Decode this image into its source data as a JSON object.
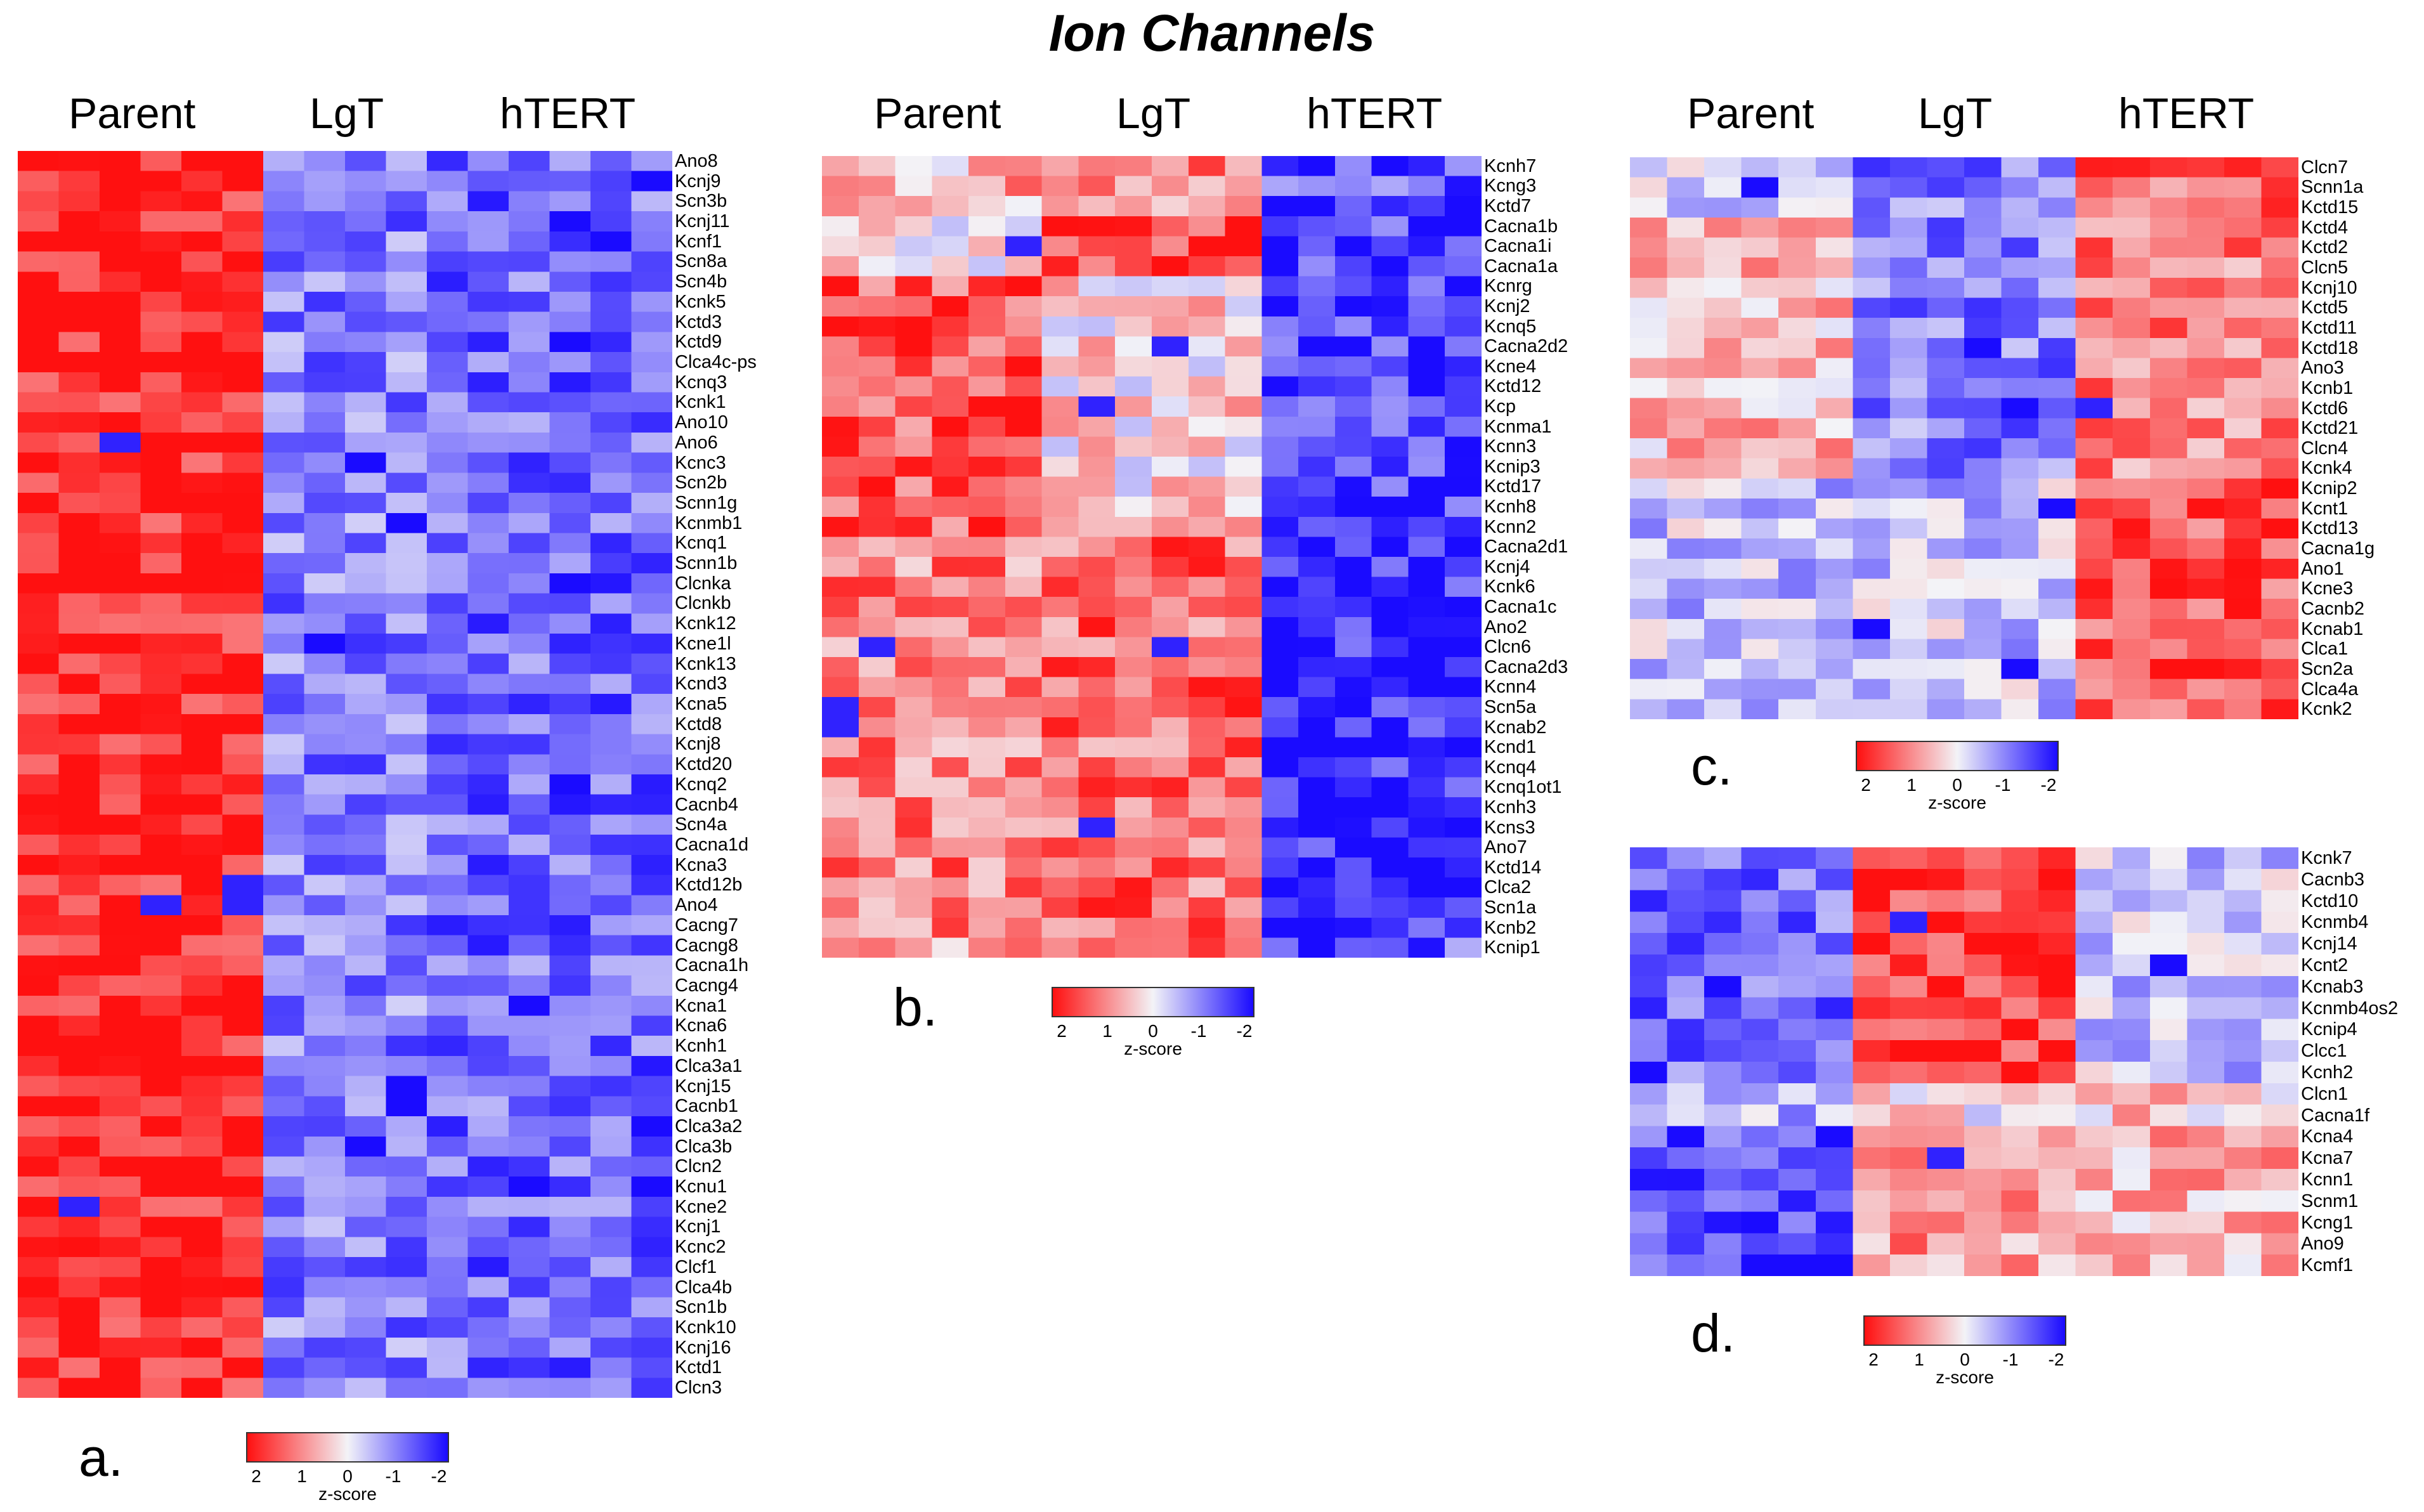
{
  "title": "Ion Channels",
  "colors": {
    "high": "#ff1010",
    "mid": "#f3f3f7",
    "low": "#1a0bff"
  },
  "legend": {
    "ticks": [
      "2",
      "1",
      "0",
      "-1",
      "-2"
    ],
    "title": "z-score"
  },
  "chart_data": [
    {
      "type": "heatmap",
      "panel": "a.",
      "groups": [
        "Parent",
        "LgT",
        "hTERT"
      ],
      "group_sizes": [
        6,
        4,
        6
      ],
      "columns": 16,
      "genes": [
        "Ano8",
        "Kcnj9",
        "Scn3b",
        "Kcnj11",
        "Kcnf1",
        "Scn8a",
        "Scn4b",
        "Kcnk5",
        "Kctd3",
        "Kctd9",
        "Clca4c-ps",
        "Kcnq3",
        "Kcnk1",
        "Ano10",
        "Ano6",
        "Kcnc3",
        "Scn2b",
        "Scnn1g",
        "Kcnmb1",
        "Kcnq1",
        "Scnn1b",
        "Clcnka",
        "Clcnkb",
        "Kcnk12",
        "Kcne1l",
        "Kcnk13",
        "Kcnd3",
        "Kcna5",
        "Kctd8",
        "Kcnj8",
        "Kctd20",
        "Kcnq2",
        "Cacnb4",
        "Scn4a",
        "Cacna1d",
        "Kcna3",
        "Kctd12b",
        "Ano4",
        "Cacng7",
        "Cacng8",
        "Cacna1h",
        "Cacng4",
        "Kcna1",
        "Kcna6",
        "Kcnh1",
        "Clca3a1",
        "Kcnj15",
        "Cacnb1",
        "Clca3a2",
        "Clca3b",
        "Clcn2",
        "Kcnu1",
        "Kcne2",
        "Kcnj1",
        "Kcnc2",
        "Clcf1",
        "Clca4b",
        "Scn1b",
        "Kcnk10",
        "Kcnj16",
        "Kctd1",
        "Clcn3"
      ],
      "group_patterns": [
        [
          0.9,
          -0.5,
          -0.6
        ]
      ],
      "pattern_rows": [
        0,
        0,
        0,
        0,
        0,
        0,
        0,
        0,
        0,
        0,
        0,
        0,
        0,
        0,
        0,
        0,
        0,
        0,
        0,
        0,
        0,
        0,
        0,
        0,
        0,
        0,
        0,
        0,
        0,
        0,
        0,
        0,
        0,
        0,
        0,
        0,
        0,
        0,
        0,
        0,
        0,
        0,
        0,
        0,
        0,
        0,
        0,
        0,
        0,
        0,
        0,
        0,
        0,
        0,
        0,
        0,
        0,
        0,
        0,
        0,
        0,
        0
      ],
      "noise": 0.35
    },
    {
      "type": "heatmap",
      "panel": "b.",
      "groups": [
        "Parent",
        "LgT",
        "hTERT"
      ],
      "group_sizes": [
        6,
        6,
        6
      ],
      "columns": 18,
      "genes": [
        "Kcnh7",
        "Kcng3",
        "Kctd7",
        "Cacna1b",
        "Cacna1i",
        "Cacna1a",
        "Kcnrg",
        "Kcnj2",
        "Kcnq5",
        "Cacna2d2",
        "Kcne4",
        "Kctd12",
        "Kcp",
        "Kcnma1",
        "Kcnn3",
        "Kcnip3",
        "Kctd17",
        "Kcnh8",
        "Kcnn2",
        "Cacna2d1",
        "Kcnj4",
        "Kcnk6",
        "Cacna1c",
        "Ano2",
        "Clcn6",
        "Cacna2d3",
        "Kcnn4",
        "Scn5a",
        "Kcnab2",
        "Kcnd1",
        "Kcnq4",
        "Kcnq1ot1",
        "Kcnh3",
        "Kcns3",
        "Ano7",
        "Kctd14",
        "Clca2",
        "Scn1a",
        "Kcnb2",
        "Kcnip1"
      ],
      "group_patterns": [
        [
          0.3,
          0.5,
          -0.7
        ],
        [
          0.1,
          0.8,
          -0.8
        ],
        [
          0.7,
          0.1,
          -0.8
        ],
        [
          0.5,
          0.6,
          -0.9
        ]
      ],
      "pattern_rows": [
        0,
        0,
        0,
        1,
        1,
        1,
        2,
        2,
        2,
        2,
        2,
        2,
        2,
        2,
        2,
        2,
        2,
        2,
        2,
        3,
        3,
        3,
        3,
        3,
        3,
        3,
        3,
        3,
        3,
        3,
        3,
        3,
        3,
        3,
        3,
        3,
        3,
        3,
        3,
        0
      ],
      "noise": 0.4
    },
    {
      "type": "heatmap",
      "panel": "c.",
      "groups": [
        "Parent",
        "LgT",
        "hTERT"
      ],
      "group_sizes": [
        6,
        6,
        6
      ],
      "columns": 18,
      "genes": [
        "Clcn7",
        "Scnn1a",
        "Kctd15",
        "Kctd4",
        "Kctd2",
        "Clcn5",
        "Kcnj10",
        "Kctd5",
        "Kctd11",
        "Kctd18",
        "Ano3",
        "Kcnb1",
        "Kctd6",
        "Kctd21",
        "Clcn4",
        "Kcnk4",
        "Kcnip2",
        "Kcnt1",
        "Kctd13",
        "Cacna1g",
        "Ano1",
        "Kcne3",
        "Cacnb2",
        "Kcnab1",
        "Clca1",
        "Scn2a",
        "Clca4a",
        "Kcnk2"
      ],
      "group_patterns": [
        [
          -0.1,
          -0.5,
          0.6
        ],
        [
          0.25,
          -0.5,
          0.5
        ],
        [
          -0.2,
          -0.2,
          0.7
        ]
      ],
      "pattern_rows": [
        0,
        0,
        0,
        1,
        1,
        1,
        1,
        1,
        1,
        1,
        1,
        1,
        1,
        1,
        1,
        1,
        2,
        2,
        2,
        2,
        2,
        2,
        2,
        2,
        2,
        2,
        2,
        2
      ],
      "noise": 0.35
    },
    {
      "type": "heatmap",
      "panel": "d.",
      "groups": [
        "Parent",
        "LgT",
        "hTERT"
      ],
      "group_sizes": [
        6,
        6,
        6
      ],
      "columns": 18,
      "genes": [
        "Kcnk7",
        "Cacnb3",
        "Kctd10",
        "Kcnmb4",
        "Kcnj14",
        "Kcnt2",
        "Kcnab3",
        "Kcnmb4os2",
        "Kcnip4",
        "Clcc1",
        "Kcnh2",
        "Clcn1",
        "Cacna1f",
        "Kcna4",
        "Kcna7",
        "Kcnn1",
        "Scnm1",
        "Kcng1",
        "Ano9",
        "Kcmf1"
      ],
      "group_patterns": [
        [
          -0.6,
          0.8,
          -0.2
        ],
        [
          -0.3,
          0.1,
          0.2
        ],
        [
          -0.7,
          0.4,
          0.3
        ]
      ],
      "pattern_rows": [
        0,
        0,
        0,
        0,
        0,
        0,
        0,
        0,
        0,
        0,
        0,
        1,
        1,
        2,
        2,
        2,
        2,
        2,
        2,
        2
      ],
      "noise": 0.35
    }
  ]
}
